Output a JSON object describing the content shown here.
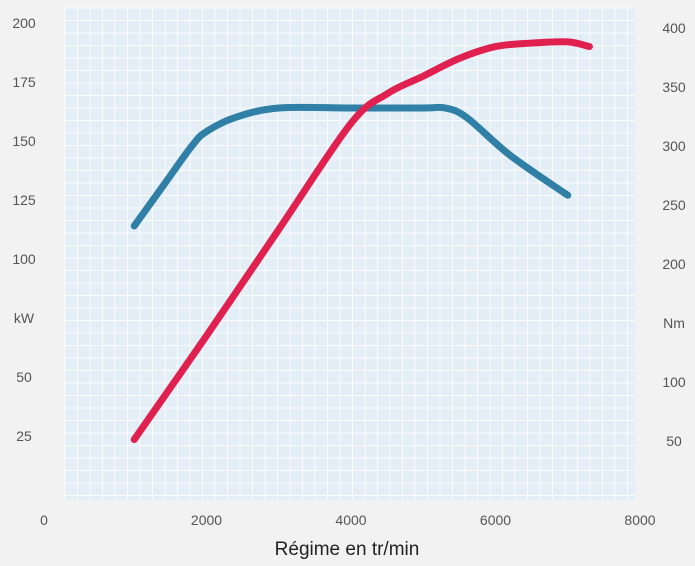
{
  "chart_data": {
    "type": "line",
    "xlabel": "Régime en tr/min",
    "x_ticks": [
      "0",
      "2000",
      "4000",
      "6000",
      "8000"
    ],
    "xlim": [
      0,
      8000
    ],
    "left_axis": {
      "unit_label": "kW",
      "ticks": [
        "200",
        "175",
        "150",
        "125",
        "100",
        "kW",
        "50",
        "25"
      ],
      "ylim": [
        0,
        200
      ]
    },
    "right_axis": {
      "unit_label": "Nm",
      "ticks": [
        "400",
        "350",
        "300",
        "250",
        "200",
        "Nm",
        "100",
        "50"
      ],
      "ylim": [
        0,
        400
      ]
    },
    "grid": true,
    "series": [
      {
        "axis": "left",
        "color": "#2f7fa6",
        "x": [
          1000,
          1400,
          1800,
          2000,
          2400,
          3000,
          4000,
          5000,
          5300,
          5600,
          6200,
          7000
        ],
        "y": [
          114,
          131,
          148,
          154,
          160,
          164,
          164,
          164,
          164,
          160,
          144,
          127
        ]
      },
      {
        "axis": "right",
        "color": "#e0214f",
        "x": [
          1000,
          2000,
          3000,
          4000,
          4500,
          5000,
          5500,
          6000,
          6500,
          7000,
          7300
        ],
        "y": [
          47,
          135,
          225,
          315,
          340,
          355,
          370,
          380,
          383,
          384,
          380
        ]
      }
    ]
  }
}
